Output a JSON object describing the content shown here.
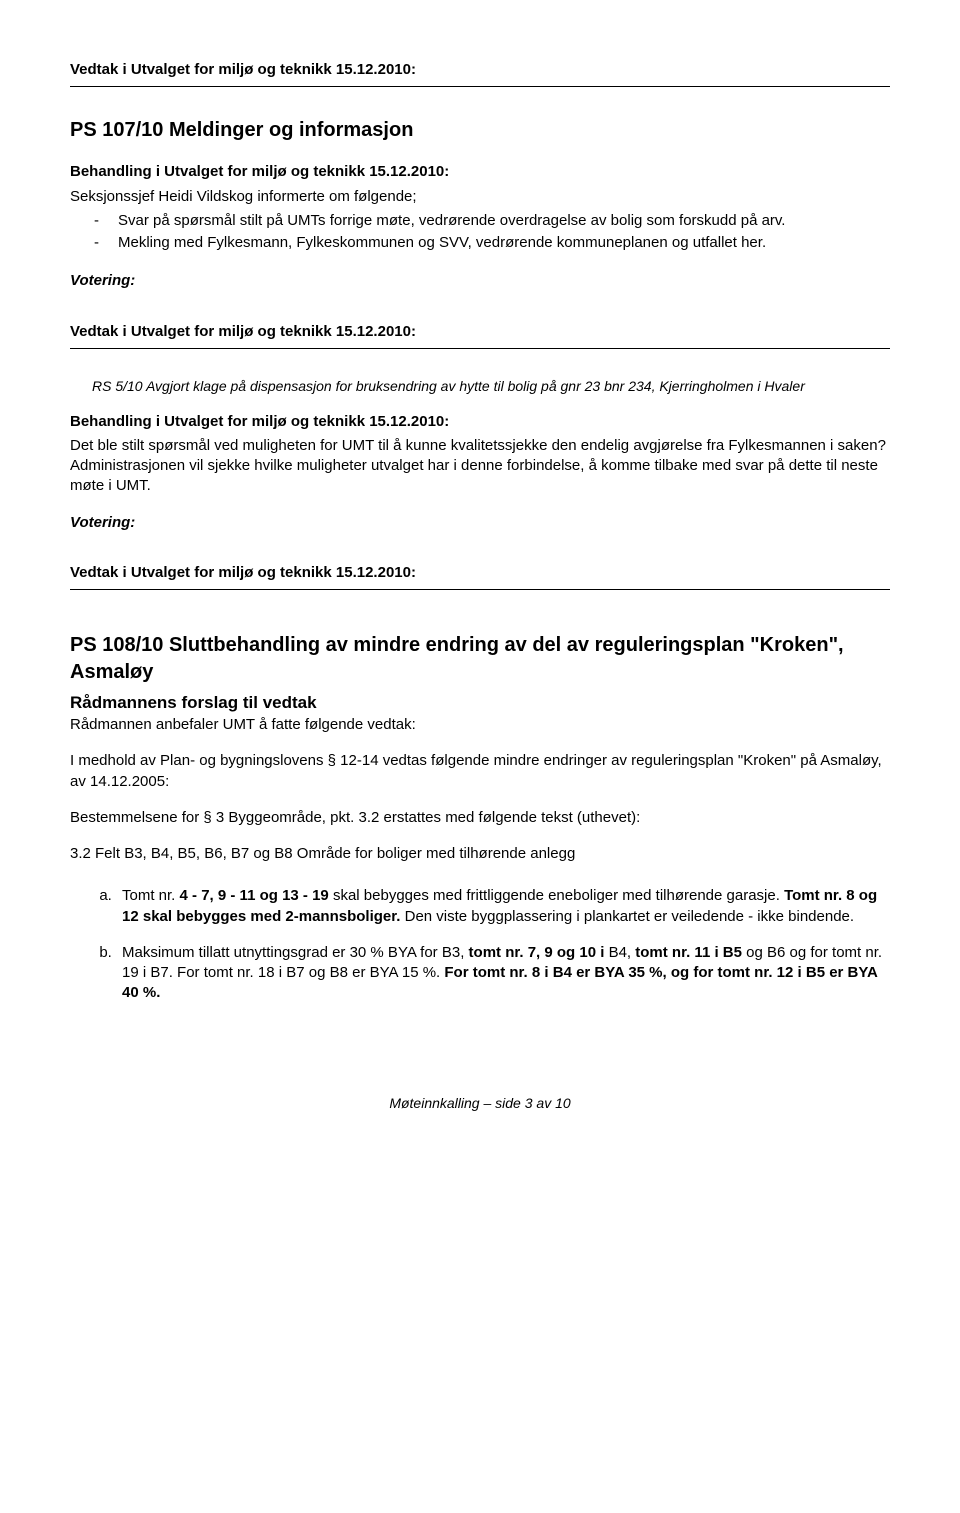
{
  "vedtak_header": "Vedtak i Utvalget for miljø og teknikk 15.12.2010:",
  "behandling_header": "Behandling i Utvalget for miljø og teknikk 15.12.2010:",
  "votering": "Votering:",
  "ps107": {
    "title": "PS 107/10 Meldinger og informasjon",
    "intro": "Seksjonssjef Heidi Vildskog informerte om følgende;",
    "bullets": [
      "Svar på spørsmål stilt på UMTs forrige møte, vedrørende overdragelse av bolig som forskudd på arv.",
      "Mekling med Fylkesmann, Fylkeskommunen og SVV, vedrørende kommuneplanen og utfallet her."
    ]
  },
  "rs510": {
    "ref": "RS 5/10 Avgjort klage på dispensasjon for bruksendring av hytte til bolig på gnr 23 bnr 234, Kjerringholmen i Hvaler",
    "body": "Det ble stilt spørsmål ved muligheten for UMT til å kunne kvalitetssjekke den endelig avgjørelse fra Fylkesmannen i saken? Administrasjonen vil sjekke hvilke muligheter utvalget har i denne forbindelse, å komme tilbake med svar på dette til neste møte i UMT."
  },
  "ps108": {
    "title_line1": "PS 108/10 Sluttbehandling av mindre endring av del av reguleringsplan \"Kroken\", Asmaløy",
    "subtitle": "Rådmannens forslag til vedtak",
    "lead": "Rådmannen anbefaler UMT å fatte følgende vedtak:",
    "p1": "I medhold av Plan- og bygningslovens § 12-14 vedtas følgende mindre endringer av reguleringsplan \"Kroken\" på Asmaløy, av 14.12.2005:",
    "p2": "Bestemmelsene for § 3 Byggeområde, pkt. 3.2 erstattes med følgende tekst (uthevet):",
    "p3": "3.2 Felt B3, B4, B5, B6, B7 og B8 Område for boliger med tilhørende anlegg",
    "item_a": {
      "pre": "Tomt nr. ",
      "b1": "4 - 7, 9 - 11 og 13 - 19",
      "mid1": " skal bebygges med frittliggende eneboliger med tilhørende garasje. ",
      "b2": "Tomt nr. 8 og 12 skal bebygges med 2-mannsboliger.",
      "post": " Den viste byggplassering i plankartet er veiledende - ikke bindende."
    },
    "item_b": {
      "pre": "Maksimum tillatt utnyttingsgrad er 30 % BYA for B3, ",
      "b1": "tomt nr. 7, 9 og 10 i ",
      "mid1": "B4, ",
      "b2": "tomt nr. 11 i B5",
      "mid2": " og B6 og for tomt nr. 19 i B7. For tomt nr. 18 i B7 og B8 er BYA 15 %. ",
      "b3": "For tomt nr. 8 i B4 er BYA 35 %, og for tomt nr. 12 i B5 er BYA 40 %."
    }
  },
  "footer": "Møteinnkalling – side 3 av 10"
}
